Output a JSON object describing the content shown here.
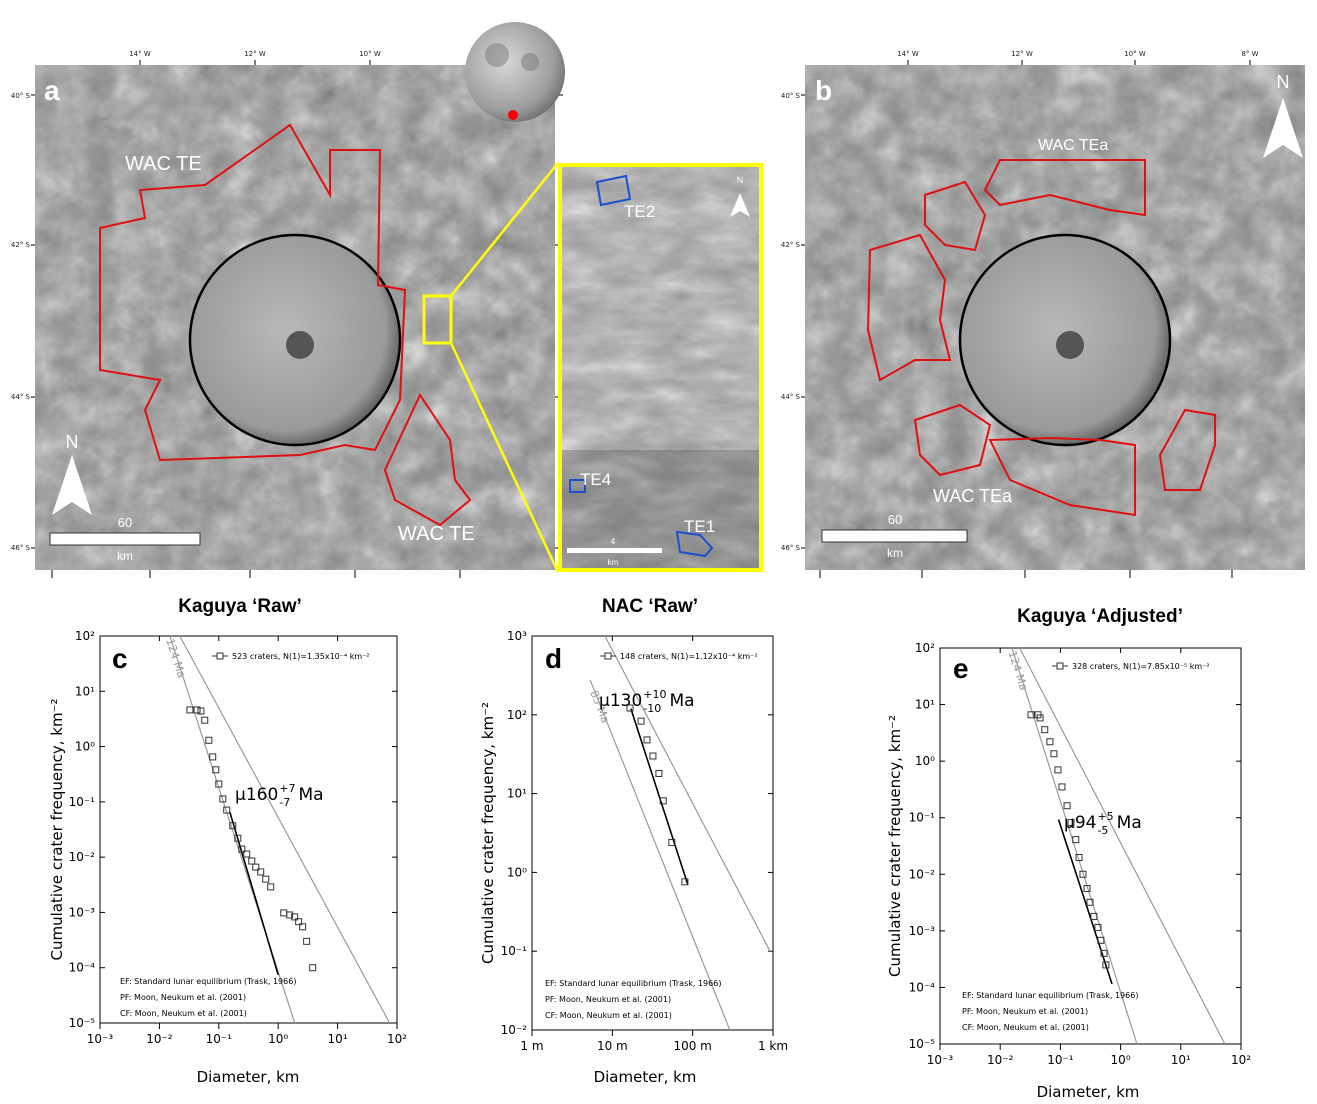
{
  "maps": {
    "a": {
      "panel": "a",
      "lon_labels": [
        "14° W",
        "12° W",
        "10° W"
      ],
      "lat_labels": [
        "40° S",
        "42° S",
        "44° S",
        "46° S"
      ],
      "region_labels": [
        "WAC TE",
        "WAC TE"
      ],
      "north": "N",
      "scale_value": "60",
      "scale_unit": "km"
    },
    "inset": {
      "labels": [
        "TE2",
        "TE4",
        "TE1"
      ],
      "north": "N",
      "scale_value": "4",
      "scale_unit": "km"
    },
    "b": {
      "panel": "b",
      "lon_labels": [
        "14° W",
        "12° W",
        "10° W",
        "8° W"
      ],
      "lat_labels": [
        "40° S",
        "42° S",
        "44° S",
        "46° S"
      ],
      "region_labels": [
        "WAC TEa",
        "WAC TEa"
      ],
      "north": "N",
      "scale_value": "60",
      "scale_unit": "km"
    }
  },
  "chart_data": [
    {
      "type": "scatter",
      "panel": "c",
      "title": "Kaguya ‘Raw’",
      "xlabel": "Diameter, km",
      "ylabel": "Cumulative crater frequency, km⁻²",
      "log_x": true,
      "log_y": true,
      "xlim": [
        0.001,
        100
      ],
      "ylim": [
        1e-05,
        100
      ],
      "xticks": [
        {
          "value": 0.001,
          "label": "10⁻³"
        },
        {
          "value": 0.01,
          "label": "10⁻²"
        },
        {
          "value": 0.1,
          "label": "10⁻¹"
        },
        {
          "value": 1,
          "label": "10⁰"
        },
        {
          "value": 10,
          "label": "10¹"
        },
        {
          "value": 100,
          "label": "10²"
        }
      ],
      "yticks": [
        {
          "value": 1e-05,
          "label": "10⁻⁵"
        },
        {
          "value": 0.0001,
          "label": "10⁻⁴"
        },
        {
          "value": 0.001,
          "label": "10⁻³"
        },
        {
          "value": 0.01,
          "label": "10⁻²"
        },
        {
          "value": 0.1,
          "label": "10⁻¹"
        },
        {
          "value": 1,
          "label": "10⁰"
        },
        {
          "value": 10,
          "label": "10¹"
        },
        {
          "value": 100,
          "label": "10²"
        }
      ],
      "series": [
        {
          "name": "523 craters, N(1)=1.35x10⁻⁴ km⁻²",
          "color": "#333333",
          "x": [
            0.0326,
            0.043,
            0.05,
            0.058,
            0.068,
            0.079,
            0.089,
            0.1,
            0.117,
            0.136,
            0.172,
            0.209,
            0.244,
            0.295,
            0.359,
            0.419,
            0.508,
            0.617,
            0.748,
            1.24,
            1.56,
            1.89,
            2.21,
            2.58,
            3.01,
            3.8
          ],
          "values": [
            4.6,
            4.6,
            4.4,
            3.0,
            1.3,
            0.65,
            0.38,
            0.21,
            0.113,
            0.071,
            0.037,
            0.022,
            0.014,
            0.0114,
            0.0085,
            0.0066,
            0.0054,
            0.004,
            0.0029,
            0.00098,
            0.0009,
            0.00083,
            0.00068,
            0.00055,
            0.0003,
            0.0001
          ]
        }
      ],
      "lines": [
        {
          "color": "#999999",
          "x": [
            0.022,
            75
          ],
          "values": [
            100,
            1e-05
          ]
        },
        {
          "color": "#999999",
          "x": [
            0.015,
            1.9
          ],
          "values": [
            100,
            1e-05
          ],
          "label": "124 Ma"
        },
        {
          "color": "#000000",
          "x": [
            0.153,
            1.0
          ],
          "values": [
            0.066,
            7.4e-05
          ]
        }
      ],
      "age": {
        "mu": "μ160",
        "plus": "+7",
        "minus": "-7",
        "unit": "Ma"
      },
      "notes": [
        "EF: Standard lunar equilibrium (Trask, 1966)",
        "PF: Moon, Neukum et al. (2001)",
        "CF: Moon, Neukum et al. (2001)"
      ]
    },
    {
      "type": "scatter",
      "panel": "d",
      "title": "NAC ‘Raw’",
      "xlabel": "Diameter, km",
      "ylabel": "Cumulative crater frequency, km⁻²",
      "log_x": true,
      "log_y": true,
      "xlim": [
        0.001,
        1
      ],
      "ylim": [
        0.01,
        1000
      ],
      "xticks": [
        {
          "value": 0.001,
          "label": "1 m"
        },
        {
          "value": 0.01,
          "label": "10 m"
        },
        {
          "value": 0.1,
          "label": "100 m"
        },
        {
          "value": 1,
          "label": "1 km"
        }
      ],
      "yticks": [
        {
          "value": 0.01,
          "label": "10⁻²"
        },
        {
          "value": 0.1,
          "label": "10⁻¹"
        },
        {
          "value": 1,
          "label": "10⁰"
        },
        {
          "value": 10,
          "label": "10¹"
        },
        {
          "value": 100,
          "label": "10²"
        },
        {
          "value": 1000,
          "label": "10³"
        }
      ],
      "series": [
        {
          "name": "148 craters, N(1)=1.12x10⁻⁴ km⁻²",
          "color": "#333333",
          "x": [
            0.0166,
            0.0228,
            0.027,
            0.032,
            0.038,
            0.043,
            0.055,
            0.08
          ],
          "values": [
            122,
            83,
            48,
            30,
            18,
            8.1,
            2.4,
            0.76
          ]
        }
      ],
      "lines": [
        {
          "color": "#999999",
          "x": [
            0.0081,
            0.92
          ],
          "values": [
            1000,
            0.1
          ]
        },
        {
          "color": "#999999",
          "x": [
            0.0053,
            0.29
          ],
          "values": [
            276,
            0.01
          ],
          "label": "85 Ma"
        },
        {
          "color": "#000000",
          "x": [
            0.017,
            0.087
          ],
          "values": [
            120,
            0.7
          ]
        }
      ],
      "age": {
        "mu": "μ130",
        "plus": "+10",
        "minus": "-10",
        "unit": "Ma"
      },
      "notes": [
        "EF: Standard lunar equilibrium (Trask, 1966)",
        "PF: Moon, Neukum et al. (2001)",
        "CF: Moon, Neukum et al. (2001)"
      ]
    },
    {
      "type": "scatter",
      "panel": "e",
      "title": "Kaguya ‘Adjusted’",
      "xlabel": "Diameter, km",
      "ylabel": "Cumulative crater frequency, km⁻²",
      "log_x": true,
      "log_y": true,
      "xlim": [
        0.001,
        100
      ],
      "ylim": [
        1e-05,
        100
      ],
      "xticks": [
        {
          "value": 0.001,
          "label": "10⁻³"
        },
        {
          "value": 0.01,
          "label": "10⁻²"
        },
        {
          "value": 0.1,
          "label": "10⁻¹"
        },
        {
          "value": 1,
          "label": "10⁰"
        },
        {
          "value": 10,
          "label": "10¹"
        },
        {
          "value": 100,
          "label": "10²"
        }
      ],
      "yticks": [
        {
          "value": 1e-05,
          "label": "10⁻⁵"
        },
        {
          "value": 0.0001,
          "label": "10⁻⁴"
        },
        {
          "value": 0.001,
          "label": "10⁻³"
        },
        {
          "value": 0.01,
          "label": "10⁻²"
        },
        {
          "value": 0.1,
          "label": "10⁻¹"
        },
        {
          "value": 1,
          "label": "10⁰"
        },
        {
          "value": 10,
          "label": "10¹"
        },
        {
          "value": 100,
          "label": "10²"
        }
      ],
      "series": [
        {
          "name": "328 craters, N(1)=7.85x10⁻⁵ km⁻²",
          "color": "#333333",
          "x": [
            0.0325,
            0.0425,
            0.046,
            0.055,
            0.067,
            0.078,
            0.091,
            0.106,
            0.129,
            0.15,
            0.18,
            0.204,
            0.237,
            0.277,
            0.31,
            0.36,
            0.42,
            0.47,
            0.53,
            0.57
          ],
          "values": [
            6.6,
            6.6,
            5.8,
            3.6,
            2.2,
            1.35,
            0.7,
            0.35,
            0.163,
            0.082,
            0.041,
            0.0198,
            0.01,
            0.0056,
            0.0032,
            0.0018,
            0.00115,
            0.00068,
            0.0004,
            0.00025
          ]
        }
      ],
      "lines": [
        {
          "color": "#999999",
          "x": [
            0.021,
            54
          ],
          "values": [
            100,
            1e-05
          ]
        },
        {
          "color": "#999999",
          "x": [
            0.0157,
            1.87
          ],
          "values": [
            100,
            1e-05
          ],
          "label": "124 Ma"
        },
        {
          "color": "#000000",
          "x": [
            0.093,
            0.72
          ],
          "values": [
            0.093,
            0.000115
          ]
        }
      ],
      "age": {
        "mu": "μ94",
        "plus": "+5",
        "minus": "-5",
        "unit": "Ma"
      },
      "notes": [
        "EF: Standard lunar equilibrium (Trask, 1966)",
        "PF: Moon, Neukum et al. (2001)",
        "CF: Moon, Neukum et al. (2001)"
      ]
    }
  ]
}
